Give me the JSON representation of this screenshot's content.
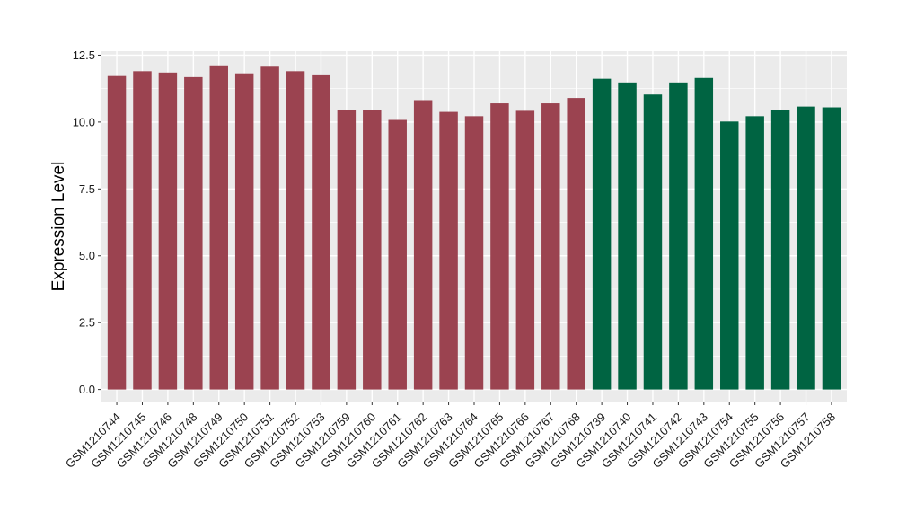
{
  "chart_data": {
    "type": "bar",
    "title": "",
    "xlabel": "",
    "ylabel": "Expression Level",
    "ylim": [
      -0.45,
      12.65
    ],
    "yticks": [
      0.0,
      2.5,
      5.0,
      7.5,
      10.0,
      12.5
    ],
    "ytick_labels": [
      "0.0",
      "2.5",
      "5.0",
      "7.5",
      "10.0",
      "12.5"
    ],
    "grid": true,
    "legend": "none",
    "categories": [
      "GSM1210744",
      "GSM1210745",
      "GSM1210746",
      "GSM1210748",
      "GSM1210749",
      "GSM1210750",
      "GSM1210751",
      "GSM1210752",
      "GSM1210753",
      "GSM1210759",
      "GSM1210760",
      "GSM1210761",
      "GSM1210762",
      "GSM1210763",
      "GSM1210764",
      "GSM1210765",
      "GSM1210766",
      "GSM1210767",
      "GSM1210768",
      "GSM1210739",
      "GSM1210740",
      "GSM1210741",
      "GSM1210742",
      "GSM1210743",
      "GSM1210754",
      "GSM1210755",
      "GSM1210756",
      "GSM1210757",
      "GSM1210758"
    ],
    "values": [
      11.72,
      11.9,
      11.85,
      11.68,
      12.12,
      11.82,
      12.07,
      11.9,
      11.78,
      10.45,
      10.45,
      10.08,
      10.82,
      10.38,
      10.22,
      10.7,
      10.42,
      10.7,
      10.9,
      11.62,
      11.48,
      11.03,
      11.48,
      11.65,
      10.02,
      10.22,
      10.45,
      10.58,
      10.55
    ],
    "colors": [
      "#9b4350",
      "#9b4350",
      "#9b4350",
      "#9b4350",
      "#9b4350",
      "#9b4350",
      "#9b4350",
      "#9b4350",
      "#9b4350",
      "#9b4350",
      "#9b4350",
      "#9b4350",
      "#9b4350",
      "#9b4350",
      "#9b4350",
      "#9b4350",
      "#9b4350",
      "#9b4350",
      "#9b4350",
      "#006442",
      "#006442",
      "#006442",
      "#006442",
      "#006442",
      "#006442",
      "#006442",
      "#006442",
      "#006442",
      "#006442"
    ],
    "panel_color": "#ebebeb",
    "grid_color": "#ffffff"
  }
}
